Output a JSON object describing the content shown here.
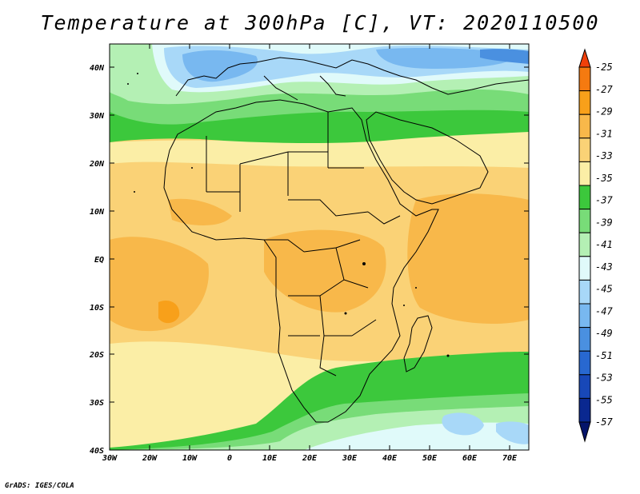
{
  "title": "Temperature at 300hPa [C], VT: 2020110500",
  "credit": "GrADS: IGES/COLA",
  "map": {
    "lat_labels": [
      "40N",
      "30N",
      "20N",
      "10N",
      "EQ",
      "10S",
      "20S",
      "30S",
      "40S"
    ],
    "lon_labels": [
      "30W",
      "20W",
      "10W",
      "0",
      "10E",
      "20E",
      "30E",
      "40E",
      "50E",
      "60E",
      "70E"
    ]
  },
  "colorbar": {
    "levels": [
      "-25",
      "-27",
      "-29",
      "-31",
      "-33",
      "-35",
      "-37",
      "-39",
      "-41",
      "-43",
      "-45",
      "-47",
      "-49",
      "-51",
      "-53",
      "-55",
      "-57"
    ],
    "colors": {
      "c25": "#f0400a",
      "c27": "#f57a10",
      "c29": "#f8a01a",
      "c31": "#f8b84a",
      "c33": "#fad276",
      "c35": "#fbeea6",
      "c37": "#3cc83c",
      "c39": "#78dc78",
      "c41": "#b4f0b4",
      "c43": "#e0fafa",
      "c45": "#a8d8f8",
      "c47": "#78b8f0",
      "c49": "#4a90e0",
      "c51": "#2868d0",
      "c53": "#1848b8",
      "c55": "#0a2890",
      "c57": "#04146a"
    }
  }
}
